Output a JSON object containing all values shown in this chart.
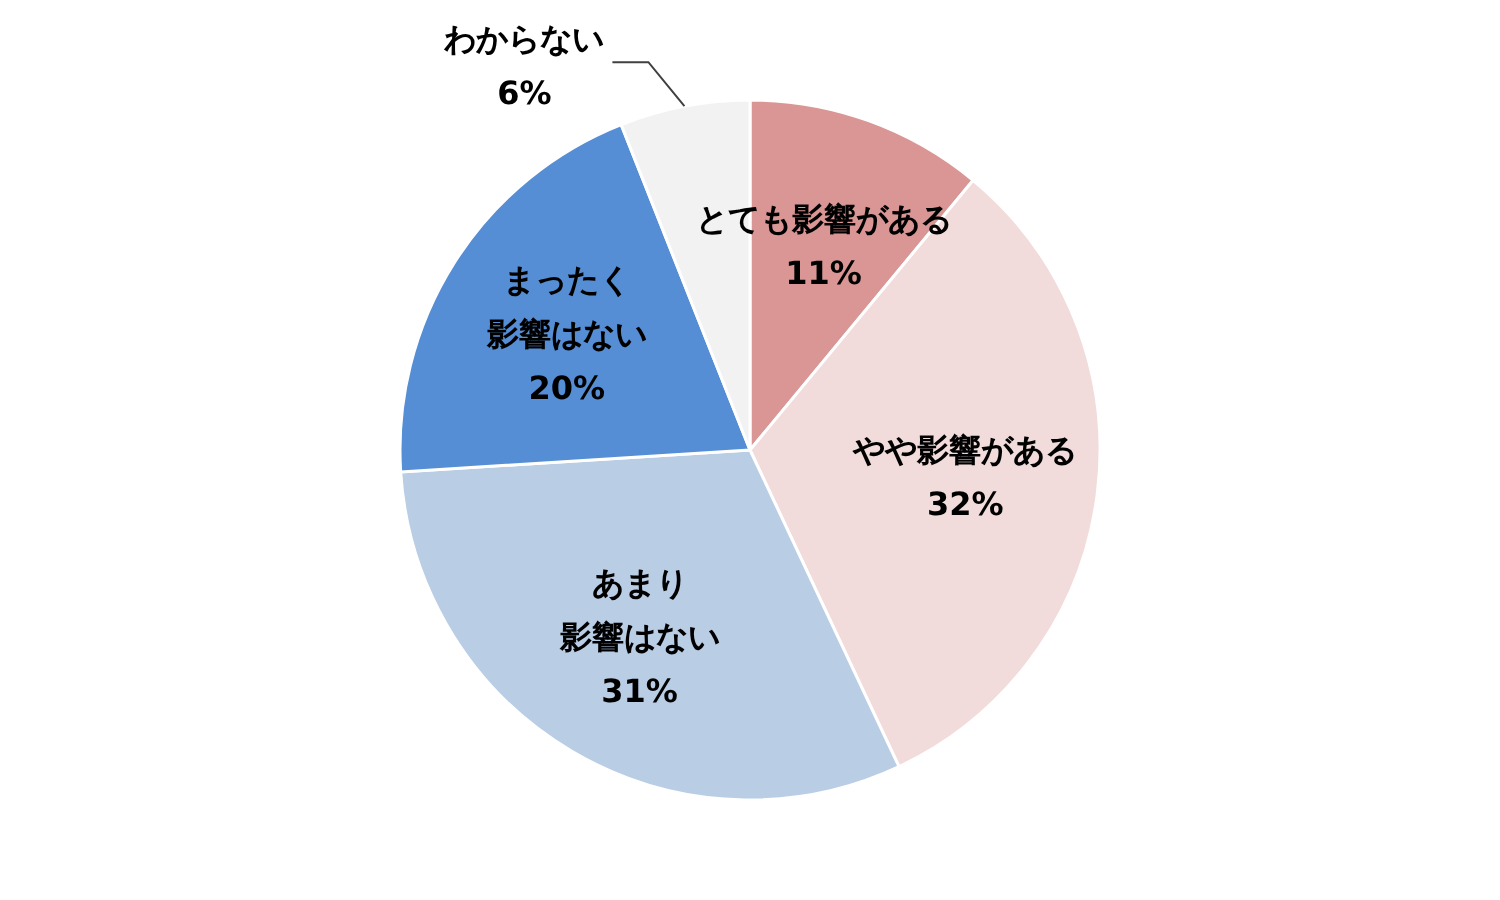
{
  "chart_data": {
    "type": "pie",
    "categories": [
      "とても影響がある",
      "やや影響がある",
      "あまり影響はない",
      "まったく影響はない",
      "わからない"
    ],
    "values": [
      11,
      32,
      31,
      20,
      6
    ],
    "colors": [
      "#d99694",
      "#f2dcdb",
      "#b9cde5",
      "#558ed5",
      "#f2f2f2"
    ],
    "value_labels": [
      "11%",
      "32%",
      "31%",
      "20%",
      "6%"
    ]
  }
}
